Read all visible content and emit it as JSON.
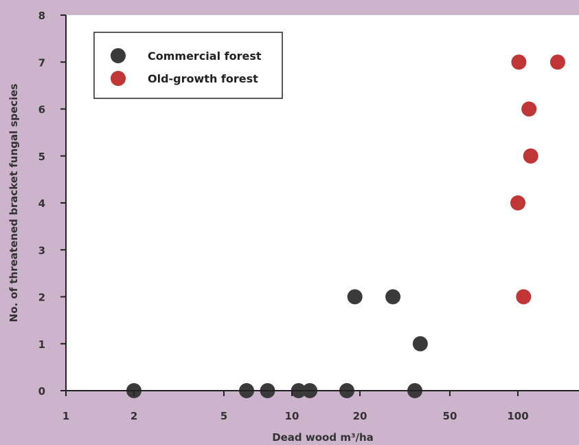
{
  "chart_data": {
    "type": "scatter",
    "title": "",
    "xlabel": "Dead wood m³/ha",
    "ylabel": "No. of threatened bracket fungal species",
    "xscale": "log",
    "xlim": [
      1,
      150
    ],
    "ylim": [
      0,
      8
    ],
    "xticks": [
      1,
      2,
      5,
      10,
      20,
      50,
      100
    ],
    "yticks": [
      0,
      1,
      2,
      3,
      4,
      5,
      6,
      7,
      8
    ],
    "grid": false,
    "legend_position": "top-left",
    "series": [
      {
        "name": "Commercial forest",
        "color": "#3a3a3a",
        "points": [
          {
            "x": 2.0,
            "y": 0
          },
          {
            "x": 6.3,
            "y": 0
          },
          {
            "x": 7.8,
            "y": 0
          },
          {
            "x": 10.7,
            "y": 0
          },
          {
            "x": 12.0,
            "y": 0
          },
          {
            "x": 17.5,
            "y": 0
          },
          {
            "x": 19.0,
            "y": 2
          },
          {
            "x": 28.0,
            "y": 2
          },
          {
            "x": 35.0,
            "y": 0
          },
          {
            "x": 37.0,
            "y": 1
          }
        ]
      },
      {
        "name": "Old-growth forest",
        "color": "#c03535",
        "points": [
          {
            "x": 100.0,
            "y": 4
          },
          {
            "x": 101.0,
            "y": 7
          },
          {
            "x": 106.0,
            "y": 2
          },
          {
            "x": 112.0,
            "y": 6
          },
          {
            "x": 114.0,
            "y": 5
          },
          {
            "x": 150.0,
            "y": 7
          }
        ]
      }
    ]
  }
}
